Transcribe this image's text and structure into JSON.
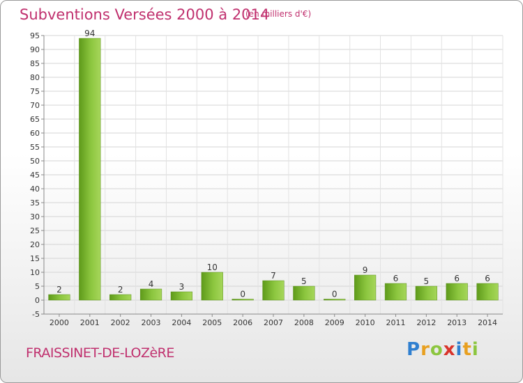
{
  "chart_data": {
    "type": "bar",
    "title": "Subventions Versées 2000 à 2014",
    "subtitle": "(en milliers d'€)",
    "xlabel": "",
    "ylabel": "",
    "categories": [
      "2000",
      "2001",
      "2002",
      "2003",
      "2004",
      "2005",
      "2006",
      "2007",
      "2008",
      "2009",
      "2010",
      "2011",
      "2012",
      "2013",
      "2014"
    ],
    "values": [
      2,
      94,
      2,
      4,
      3,
      10,
      0,
      7,
      5,
      0,
      9,
      6,
      5,
      6,
      6
    ],
    "ylim": [
      -5,
      95
    ],
    "yticks": [
      -5,
      0,
      5,
      10,
      15,
      20,
      25,
      30,
      35,
      40,
      45,
      50,
      55,
      60,
      65,
      70,
      75,
      80,
      85,
      90,
      95
    ],
    "grid": true,
    "bar_color": "#7ab62e",
    "title_color": "#c0306e"
  },
  "footer": {
    "commune": "FRAISSINET-DE-LOZèRE",
    "logo": {
      "letters": [
        {
          "char": "P",
          "color": "#2f7fd0"
        },
        {
          "char": "r",
          "color": "#e8a020"
        },
        {
          "char": "o",
          "color": "#8cc63f"
        },
        {
          "char": "x",
          "color": "#d9342b"
        },
        {
          "char": "i",
          "color": "#2f7fd0"
        },
        {
          "char": "t",
          "color": "#e8a020"
        },
        {
          "char": "i",
          "color": "#8cc63f"
        }
      ]
    }
  }
}
